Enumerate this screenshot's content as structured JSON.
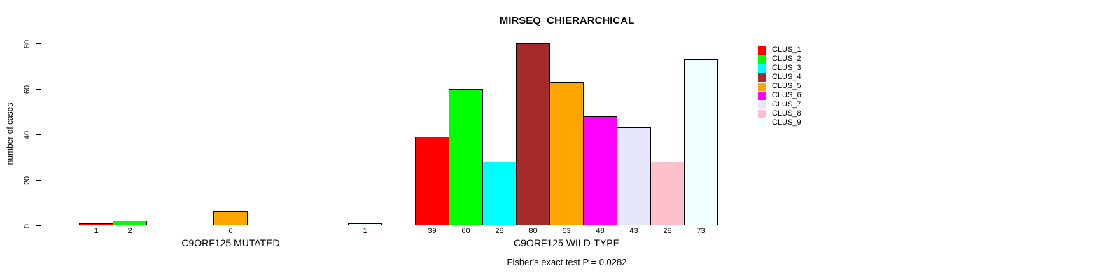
{
  "header": {
    "title": "MIRSEQ_CHIERARCHICAL"
  },
  "footer": {
    "caption": "Fisher's exact test P = 0.0282"
  },
  "chart_data": {
    "type": "bar",
    "title": "MIRSEQ_CHIERARCHICAL",
    "xlabel": "",
    "ylabel": "number of cases",
    "ylim": [
      0,
      80
    ],
    "yticks": [
      0,
      20,
      40,
      60,
      80
    ],
    "grid": false,
    "background": "#ffffff",
    "bar_border_color": "#000000",
    "legend_position": "top-right",
    "categories": [
      "C9ORF125 MUTATED",
      "C9ORF125 WILD-TYPE"
    ],
    "series": [
      {
        "name": "CLUS_1",
        "color": "#ff0000",
        "values": [
          1,
          39
        ]
      },
      {
        "name": "CLUS_2",
        "color": "#00ff00",
        "values": [
          2,
          60
        ]
      },
      {
        "name": "CLUS_3",
        "color": "#00ffff",
        "values": [
          0,
          28
        ]
      },
      {
        "name": "CLUS_4",
        "color": "#a52a2a",
        "values": [
          0,
          80
        ]
      },
      {
        "name": "CLUS_5",
        "color": "#ffa500",
        "values": [
          6,
          63
        ]
      },
      {
        "name": "CLUS_6",
        "color": "#ff00ff",
        "values": [
          0,
          48
        ]
      },
      {
        "name": "CLUS_7",
        "color": "#e6e6fa",
        "values": [
          0,
          43
        ]
      },
      {
        "name": "CLUS_8",
        "color": "#ffc0cb",
        "values": [
          0,
          28
        ]
      },
      {
        "name": "CLUS_9",
        "color": "#f0ffff",
        "values": [
          1,
          73
        ]
      }
    ],
    "bar_value_labels": {
      "C9ORF125 MUTATED": [
        "1",
        "2",
        "",
        "",
        "6",
        "",
        "",
        "",
        "1"
      ],
      "C9ORF125 WILD-TYPE": [
        "39",
        "60",
        "28",
        "80",
        "63",
        "48",
        "43",
        "28",
        "73"
      ]
    },
    "footnote": "Fisher's exact test P = 0.0282"
  }
}
